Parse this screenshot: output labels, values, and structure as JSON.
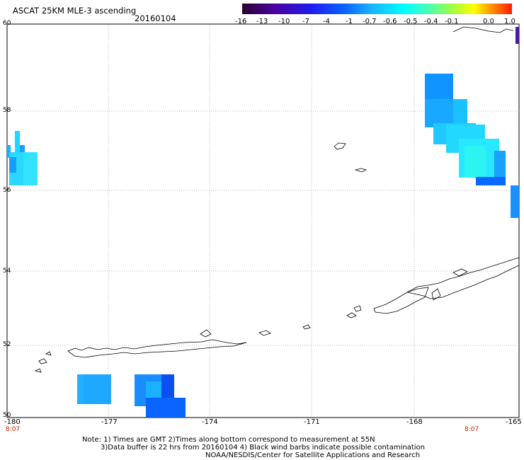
{
  "header": {
    "title": "ASCAT 25KM MLE-3 ascending",
    "date": "20160104"
  },
  "colorbar": {
    "labels": [
      "-16",
      "-13",
      "-10",
      "-7",
      "-4",
      "-1",
      "-0.7",
      "-0.6",
      "-0.5",
      "-0.4",
      "-0.1",
      "0.0",
      "1.0"
    ],
    "colors": [
      "#2a0030",
      "#1e1ef0",
      "#19b4ff",
      "#00ffff",
      "#ffff00",
      "#ff1a00"
    ]
  },
  "axes": {
    "lat_labels": [
      "60",
      "58",
      "56",
      "54",
      "52",
      "50"
    ],
    "lon_labels": [
      "-180",
      "-177",
      "-174",
      "-171",
      "-168",
      "-165"
    ],
    "grid": true
  },
  "swath_times": [
    "8:07",
    "8:07"
  ],
  "notes": {
    "line1": "Note: 1) Times are GMT 2)Times along bottom correspond to measurement at 55N",
    "line2": "3)Data buffer is 22 hrs from 20160104 4) Black wind barbs indicate possible contamination",
    "line3": "NOAA/NESDIS/Center for Satellite Applications and Research"
  }
}
